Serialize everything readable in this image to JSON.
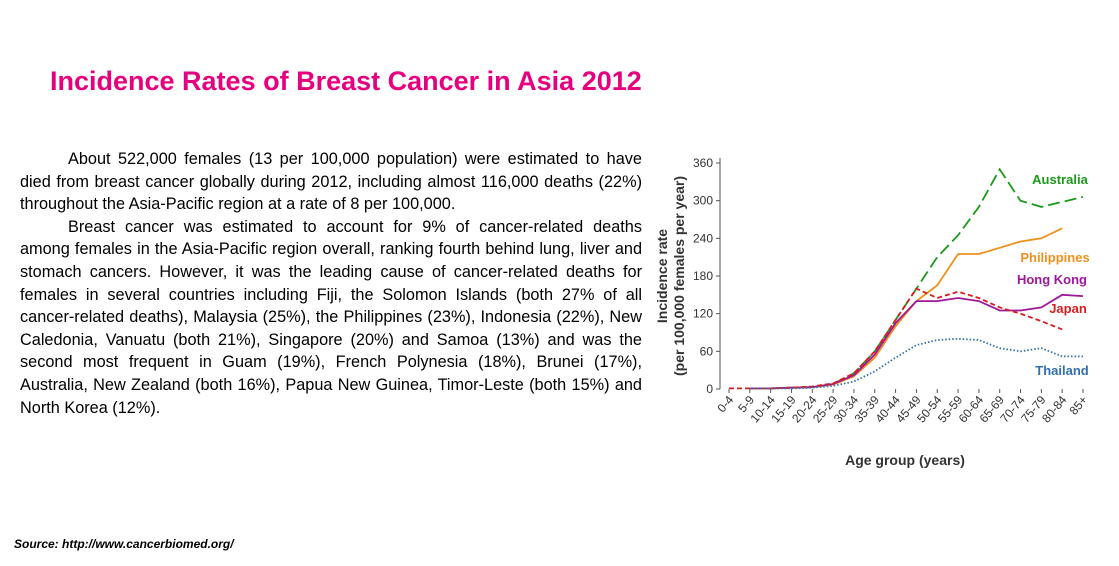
{
  "title": "Incidence Rates of Breast Cancer in Asia 2012",
  "paragraphs": [
    "About 522,000 females (13 per 100,000 population) were estimated to have died from breast cancer globally during 2012, including almost 116,000 deaths (22%) throughout the Asia-Pacific region at a rate of 8 per 100,000.",
    "Breast cancer was estimated to account for 9% of cancer-related deaths among females in the Asia-Pacific region overall, ranking fourth behind lung, liver and stomach cancers. However, it was the leading cause of cancer-related deaths for females in several countries including Fiji, the Solomon Islands (both 27% of all cancer-related deaths), Malaysia (25%), the Philippines (23%), Indonesia (22%), New Caledonia, Vanuatu (both 21%), Singapore (20%) and Samoa (13%) and was the second most frequent in Guam (19%), French Polynesia (18%), Brunei (17%), Australia, New Zealand (both 16%), Papua New Guinea, Timor-Leste (both 15%) and North Korea (12%)."
  ],
  "source": "Source: http://www.cancerbiomed.org/",
  "chart_data": {
    "type": "line",
    "xlabel": "Age group (years)",
    "ylabel": [
      "Incidence rate",
      "(per 100,000 females per year)"
    ],
    "categories": [
      "0-4",
      "5-9",
      "10-14",
      "15-19",
      "20-24",
      "25-29",
      "30-34",
      "35-39",
      "40-44",
      "45-49",
      "50-54",
      "55-59",
      "60-64",
      "65-69",
      "70-74",
      "75-79",
      "80-84",
      "85+"
    ],
    "ylim": [
      0,
      360
    ],
    "yticks": [
      0,
      60,
      120,
      180,
      240,
      300,
      360
    ],
    "series": [
      {
        "name": "Australia",
        "color": "#1a9a1a",
        "style": "dashed",
        "values": [
          null,
          1,
          1,
          2,
          3,
          8,
          25,
          60,
          110,
          160,
          210,
          245,
          290,
          350,
          300,
          290,
          298,
          306
        ]
      },
      {
        "name": "Philippines",
        "color": "#f0901e",
        "style": "solid",
        "values": [
          null,
          1,
          1,
          2,
          3,
          7,
          20,
          50,
          100,
          140,
          165,
          215,
          215,
          225,
          235,
          240,
          256,
          null
        ]
      },
      {
        "name": "Hong Kong",
        "color": "#a0189a",
        "style": "solid",
        "values": [
          null,
          1,
          1,
          2,
          3,
          8,
          22,
          55,
          105,
          140,
          140,
          145,
          140,
          125,
          125,
          130,
          150,
          148
        ]
      },
      {
        "name": "Japan",
        "color": "#d42020",
        "style": "dashed-short",
        "values": [
          1,
          1,
          1,
          2,
          4,
          9,
          25,
          60,
          110,
          160,
          145,
          155,
          145,
          130,
          120,
          108,
          95,
          null
        ]
      },
      {
        "name": "Thailand",
        "color": "#3070b0",
        "style": "dotted",
        "values": [
          null,
          1,
          1,
          1,
          2,
          5,
          12,
          28,
          50,
          70,
          78,
          80,
          78,
          65,
          60,
          65,
          52,
          52
        ]
      }
    ]
  }
}
